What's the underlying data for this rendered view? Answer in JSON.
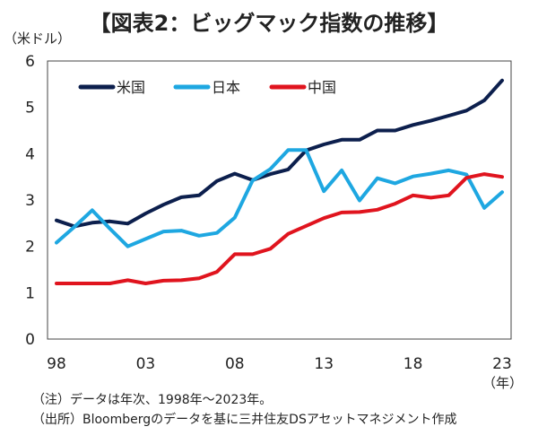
{
  "chart_data": {
    "type": "line",
    "title": "【図表2：ビッグマック指数の推移】",
    "ylabel": "（米ドル）",
    "xlabel": "（年）",
    "ylim": [
      0,
      6
    ],
    "xlim": [
      1998,
      2023
    ],
    "yticks": [
      "0",
      "1",
      "2",
      "3",
      "4",
      "5",
      "6"
    ],
    "xticks": [
      {
        "x": 1998,
        "label": "98"
      },
      {
        "x": 2003,
        "label": "03"
      },
      {
        "x": 2008,
        "label": "08"
      },
      {
        "x": 2013,
        "label": "13"
      },
      {
        "x": 2018,
        "label": "18"
      },
      {
        "x": 2023,
        "label": "23"
      }
    ],
    "grid": false,
    "legend": "top-left",
    "x": [
      1998,
      1999,
      2000,
      2001,
      2002,
      2003,
      2004,
      2005,
      2006,
      2007,
      2008,
      2009,
      2010,
      2011,
      2012,
      2013,
      2014,
      2015,
      2016,
      2017,
      2018,
      2019,
      2020,
      2021,
      2022,
      2023
    ],
    "series": [
      {
        "name": "米国",
        "color": "#0c1f4d",
        "values": [
          2.56,
          2.43,
          2.51,
          2.54,
          2.49,
          2.71,
          2.9,
          3.06,
          3.1,
          3.41,
          3.57,
          3.43,
          3.56,
          3.66,
          4.07,
          4.2,
          4.3,
          4.3,
          4.5,
          4.5,
          4.62,
          4.71,
          4.82,
          4.93,
          5.15,
          5.58
        ]
      },
      {
        "name": "日本",
        "color": "#1ea7e1",
        "values": [
          2.08,
          2.42,
          2.78,
          2.38,
          2.0,
          2.16,
          2.32,
          2.34,
          2.23,
          2.29,
          2.62,
          3.42,
          3.67,
          4.08,
          4.08,
          3.19,
          3.64,
          2.99,
          3.47,
          3.36,
          3.51,
          3.57,
          3.64,
          3.55,
          2.83,
          3.17
        ]
      },
      {
        "name": "中国",
        "color": "#e0141e",
        "values": [
          1.2,
          1.2,
          1.2,
          1.2,
          1.27,
          1.2,
          1.26,
          1.27,
          1.31,
          1.45,
          1.83,
          1.83,
          1.95,
          2.27,
          2.44,
          2.61,
          2.73,
          2.74,
          2.79,
          2.92,
          3.1,
          3.05,
          3.1,
          3.48,
          3.56,
          3.5
        ]
      }
    ]
  },
  "notes": {
    "line1": "（注）データは年次、1998年～2023年。",
    "line2": "（出所）Bloombergのデータを基に三井住友DSアセットマネジメント作成"
  }
}
